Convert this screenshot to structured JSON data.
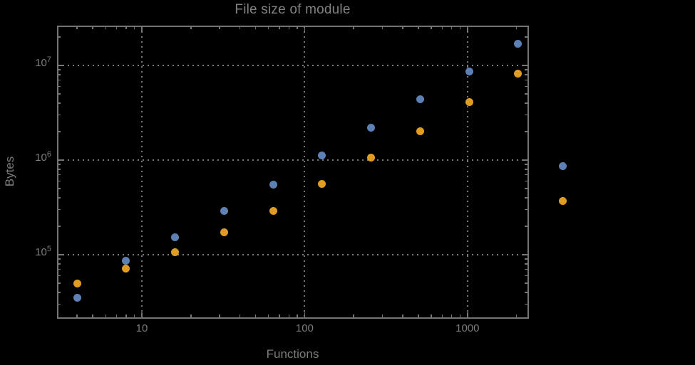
{
  "title": "File size of module",
  "colors": {
    "background": "#000000",
    "frame": "#757575",
    "grid": "#7a7a7a",
    "text": "#7d7d7d",
    "series_blue": "#5E81B5",
    "series_orange": "#E19C24"
  },
  "chart_data": {
    "type": "scatter",
    "title": "File size of module",
    "xlabel": "Functions",
    "ylabel": "Bytes",
    "x_scale": "log",
    "y_scale": "log",
    "grid": true,
    "legend": "none",
    "xlim": [
      3.05,
      2330
    ],
    "ylim": [
      21800,
      26000000
    ],
    "x_ticks": [
      {
        "value": 10,
        "label": "10"
      },
      {
        "value": 100,
        "label": "100"
      },
      {
        "value": 1000,
        "label": "1000"
      }
    ],
    "y_ticks": [
      {
        "value": 100000,
        "base": "10",
        "exp": "5"
      },
      {
        "value": 1000000,
        "base": "10",
        "exp": "6"
      },
      {
        "value": 10000000,
        "base": "10",
        "exp": "7"
      }
    ],
    "series": [
      {
        "name": "series-blue",
        "color": "#5E81B5",
        "points": [
          [
            4,
            35000
          ],
          [
            8,
            86000
          ],
          [
            16,
            153000
          ],
          [
            32,
            292000
          ],
          [
            64,
            555000
          ],
          [
            128,
            1120000
          ],
          [
            256,
            2200000
          ],
          [
            512,
            4400000
          ],
          [
            1024,
            8700000
          ],
          [
            2048,
            17000000
          ],
          [
            3840,
            860000
          ]
        ]
      },
      {
        "name": "series-orange",
        "color": "#E19C24",
        "points": [
          [
            4,
            50000
          ],
          [
            8,
            71000
          ],
          [
            16,
            107000
          ],
          [
            32,
            174000
          ],
          [
            64,
            292000
          ],
          [
            128,
            560000
          ],
          [
            256,
            1060000
          ],
          [
            512,
            2000000
          ],
          [
            1024,
            4100000
          ],
          [
            2048,
            8200000
          ],
          [
            3840,
            370000
          ]
        ]
      }
    ]
  }
}
